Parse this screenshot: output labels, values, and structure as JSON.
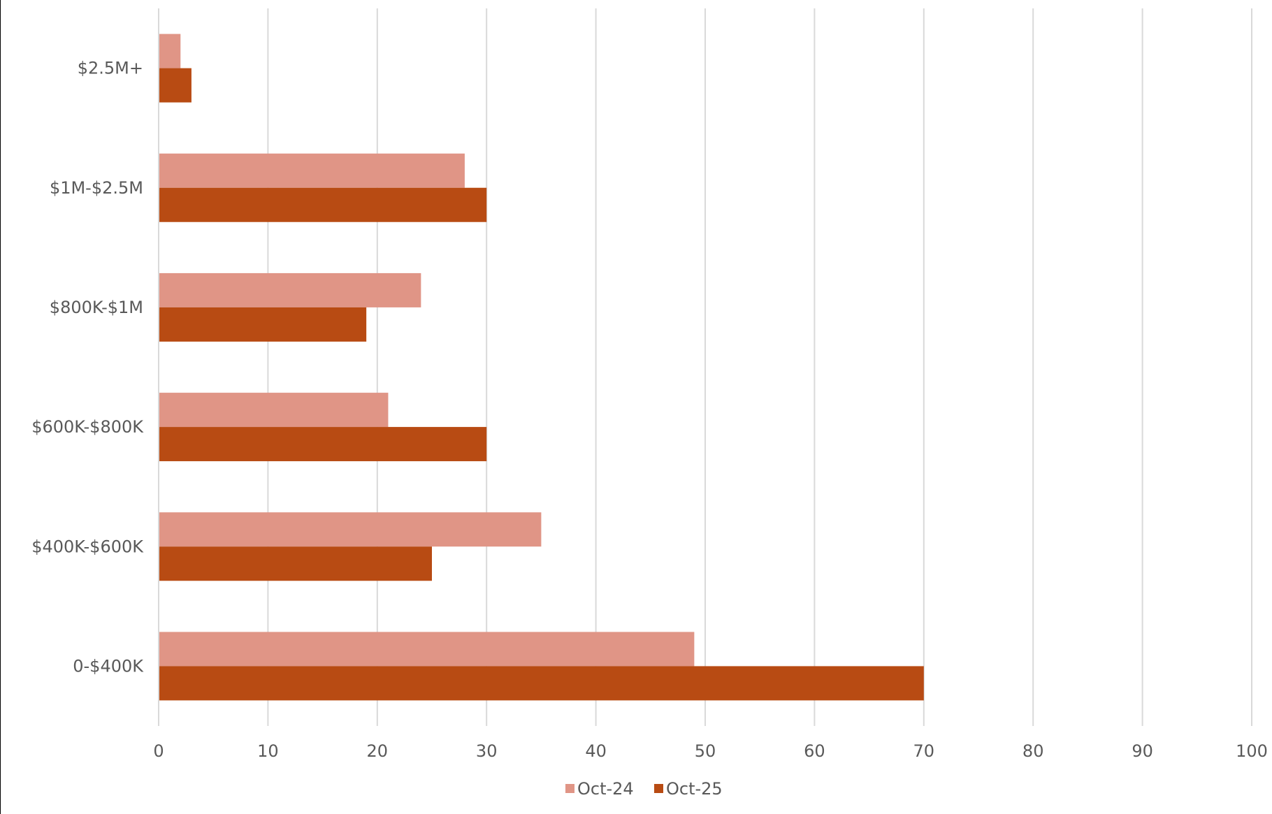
{
  "chart_data": {
    "type": "bar",
    "orientation": "horizontal",
    "title": "",
    "xlabel": "",
    "ylabel": "",
    "categories": [
      "0-$400K",
      "$400K-$600K",
      "$600K-$800K",
      "$800K-$1M",
      "$1M-$2.5M",
      "$2.5M+"
    ],
    "series": [
      {
        "name": "Oct-24",
        "color": "#e09586",
        "values": [
          49,
          35,
          21,
          24,
          28,
          2
        ]
      },
      {
        "name": "Oct-25",
        "color": "#b84b13",
        "values": [
          70,
          25,
          30,
          19,
          30,
          3
        ]
      }
    ],
    "xlim": [
      0,
      100
    ],
    "xticks": [
      0,
      10,
      20,
      30,
      40,
      50,
      60,
      70,
      80,
      90,
      100
    ],
    "grid": "vertical",
    "legend": "bottom-center"
  }
}
